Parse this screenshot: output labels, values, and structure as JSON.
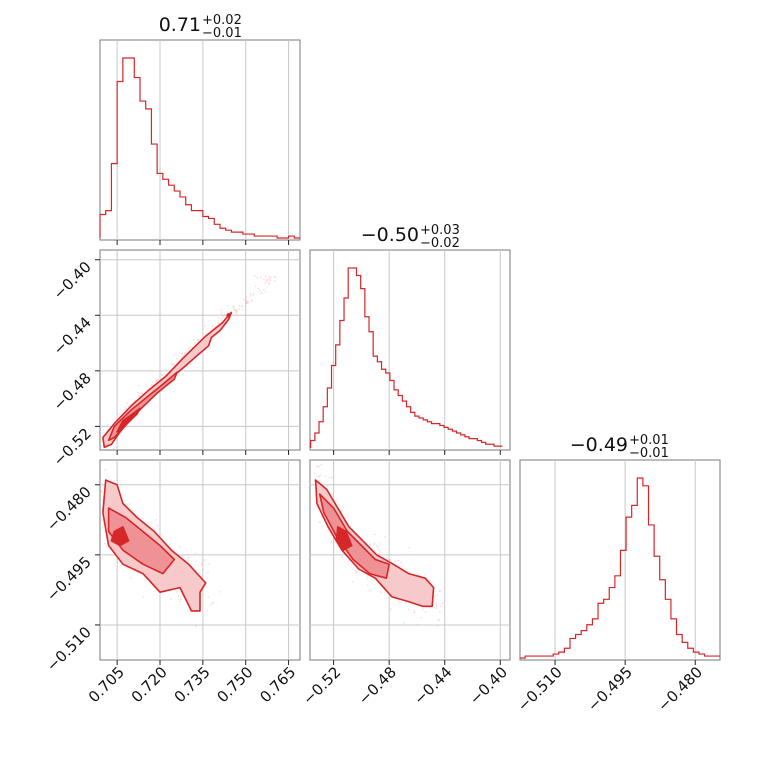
{
  "colors": {
    "accent": "#d62728",
    "fill_light": "#f6c9cb",
    "fill_mid": "#ee9296",
    "fill_dark": "#d62728",
    "grid": "#c8c8c8"
  },
  "chart_data": [
    {
      "type": "histogram",
      "parameter": 0,
      "title": {
        "value": "0.71",
        "upper": "+0.02",
        "lower": "−0.01"
      },
      "x": [
        0.7,
        0.702,
        0.704,
        0.706,
        0.708,
        0.71,
        0.712,
        0.714,
        0.716,
        0.718,
        0.72,
        0.722,
        0.724,
        0.726,
        0.728,
        0.73,
        0.732,
        0.734,
        0.736,
        0.738,
        0.74,
        0.742,
        0.744,
        0.746,
        0.748,
        0.75,
        0.752,
        0.754,
        0.756,
        0.758,
        0.76,
        0.762,
        0.764,
        0.766,
        0.768
      ],
      "values": [
        12,
        14,
        38,
        80,
        92,
        92,
        82,
        70,
        66,
        48,
        33,
        30,
        27,
        24,
        21,
        17,
        14,
        14,
        11,
        10,
        7,
        5,
        4,
        3,
        3,
        2,
        2,
        1,
        1,
        1,
        1,
        0,
        0,
        1,
        0
      ],
      "xlim": [
        0.699,
        0.769
      ],
      "xticks": [
        "0.705",
        "0.720",
        "0.735",
        "0.750",
        "0.765"
      ],
      "xtick_values": [
        0.705,
        0.72,
        0.735,
        0.75,
        0.765
      ]
    },
    {
      "type": "histogram",
      "parameter": 1,
      "title": {
        "value": "−0.50",
        "upper": "+0.03",
        "lower": "−0.02"
      },
      "x": [
        -0.535,
        -0.532,
        -0.529,
        -0.526,
        -0.523,
        -0.52,
        -0.517,
        -0.514,
        -0.511,
        -0.508,
        -0.505,
        -0.502,
        -0.499,
        -0.496,
        -0.493,
        -0.49,
        -0.487,
        -0.484,
        -0.481,
        -0.478,
        -0.475,
        -0.472,
        -0.469,
        -0.466,
        -0.463,
        -0.46,
        -0.457,
        -0.454,
        -0.451,
        -0.448,
        -0.445,
        -0.442,
        -0.439,
        -0.436,
        -0.433,
        -0.43,
        -0.427,
        -0.424,
        -0.421,
        -0.418,
        -0.415,
        -0.412,
        -0.409,
        -0.406,
        -0.403,
        -0.4
      ],
      "values": [
        4,
        8,
        14,
        22,
        32,
        44,
        55,
        68,
        80,
        96,
        96,
        92,
        85,
        70,
        62,
        49,
        46,
        42,
        40,
        36,
        31,
        28,
        25,
        22,
        19,
        17,
        16,
        15,
        14,
        13,
        13,
        12,
        11,
        10,
        9,
        8,
        7,
        6,
        5,
        5,
        4,
        3,
        2,
        2,
        1,
        1
      ],
      "xlim": [
        -0.537,
        -0.393
      ],
      "xticks": [
        "−0.52",
        "−0.48",
        "−0.44",
        "−0.40"
      ],
      "xtick_values": [
        -0.52,
        -0.48,
        -0.44,
        -0.4
      ]
    },
    {
      "type": "histogram",
      "parameter": 2,
      "title": {
        "value": "−0.49",
        "upper": "+0.01",
        "lower": "−0.01"
      },
      "x": [
        -0.517,
        -0.5158,
        -0.5146,
        -0.5134,
        -0.5122,
        -0.511,
        -0.5098,
        -0.5086,
        -0.5074,
        -0.5062,
        -0.505,
        -0.5038,
        -0.5026,
        -0.5014,
        -0.5002,
        -0.499,
        -0.4978,
        -0.4966,
        -0.4954,
        -0.4942,
        -0.493,
        -0.4918,
        -0.4906,
        -0.4894,
        -0.4882,
        -0.487,
        -0.4858,
        -0.4846,
        -0.4834,
        -0.4822,
        -0.481,
        -0.4798,
        -0.4786,
        -0.4774,
        -0.4762,
        -0.475
      ],
      "values": [
        0,
        1,
        1,
        1,
        1,
        1,
        2,
        3,
        5,
        10,
        12,
        14,
        17,
        20,
        28,
        30,
        36,
        42,
        55,
        72,
        78,
        92,
        88,
        68,
        52,
        40,
        30,
        20,
        12,
        8,
        5,
        3,
        2,
        1,
        1,
        1
      ],
      "xlim": [
        -0.5175,
        -0.4747
      ],
      "xticks": [
        "−0.510",
        "−0.495",
        "−0.480"
      ],
      "xtick_values": [
        -0.51,
        -0.495,
        -0.48
      ]
    },
    {
      "type": "scatter",
      "x_param": 0,
      "y_param": 1,
      "xlim": [
        0.699,
        0.769
      ],
      "ylim": [
        -0.537,
        -0.393
      ],
      "yticks": [
        "−0.40",
        "−0.44",
        "−0.48",
        "−0.52"
      ],
      "ytick_values": [
        -0.4,
        -0.44,
        -0.48,
        -0.52
      ],
      "ridge": [
        [
          0.7,
          -0.532
        ],
        [
          0.705,
          -0.52
        ],
        [
          0.71,
          -0.508
        ],
        [
          0.715,
          -0.496
        ],
        [
          0.72,
          -0.486
        ],
        [
          0.725,
          -0.477
        ],
        [
          0.73,
          -0.466
        ],
        [
          0.735,
          -0.455
        ],
        [
          0.74,
          -0.446
        ],
        [
          0.745,
          -0.437
        ],
        [
          0.75,
          -0.43
        ],
        [
          0.755,
          -0.42
        ],
        [
          0.76,
          -0.412
        ]
      ],
      "contours": [
        {
          "level": "outer",
          "points": [
            [
              0.7005,
              -0.535
            ],
            [
              0.7,
              -0.528
            ],
            [
              0.704,
              -0.518
            ],
            [
              0.71,
              -0.505
            ],
            [
              0.716,
              -0.494
            ],
            [
              0.722,
              -0.484
            ],
            [
              0.728,
              -0.471
            ],
            [
              0.733,
              -0.461
            ],
            [
              0.736,
              -0.455
            ],
            [
              0.742,
              -0.445
            ],
            [
              0.744,
              -0.44
            ],
            [
              0.745,
              -0.438
            ],
            [
              0.744,
              -0.443
            ],
            [
              0.741,
              -0.451
            ],
            [
              0.738,
              -0.456
            ],
            [
              0.737,
              -0.462
            ],
            [
              0.733,
              -0.469
            ],
            [
              0.728,
              -0.478
            ],
            [
              0.722,
              -0.488
            ],
            [
              0.716,
              -0.5
            ],
            [
              0.711,
              -0.512
            ],
            [
              0.706,
              -0.524
            ],
            [
              0.703,
              -0.533
            ]
          ]
        },
        {
          "level": "mid",
          "points": [
            [
              0.702,
              -0.53
            ],
            [
              0.704,
              -0.52
            ],
            [
              0.71,
              -0.508
            ],
            [
              0.716,
              -0.498
            ],
            [
              0.722,
              -0.488
            ],
            [
              0.726,
              -0.481
            ],
            [
              0.725,
              -0.486
            ],
            [
              0.719,
              -0.496
            ],
            [
              0.713,
              -0.508
            ],
            [
              0.708,
              -0.519
            ],
            [
              0.704,
              -0.528
            ]
          ]
        },
        {
          "level": "inner",
          "points": [
            [
              0.705,
              -0.524
            ],
            [
              0.707,
              -0.516
            ],
            [
              0.711,
              -0.51
            ],
            [
              0.713,
              -0.507
            ],
            [
              0.712,
              -0.511
            ],
            [
              0.709,
              -0.517
            ],
            [
              0.706,
              -0.523
            ]
          ]
        }
      ],
      "levels_marker": [
        [
          0.744,
          -0.44
        ]
      ]
    },
    {
      "type": "scatter",
      "x_param": 0,
      "y_param": 2,
      "xlim": [
        0.699,
        0.769
      ],
      "ylim": [
        -0.5175,
        -0.4747
      ],
      "yticks": [
        "−0.480",
        "−0.495",
        "−0.510"
      ],
      "ytick_values": [
        -0.48,
        -0.495,
        -0.51
      ],
      "ridge": [
        [
          0.7,
          -0.484
        ],
        [
          0.705,
          -0.488
        ],
        [
          0.71,
          -0.492
        ],
        [
          0.715,
          -0.495
        ],
        [
          0.72,
          -0.497
        ],
        [
          0.725,
          -0.499
        ],
        [
          0.73,
          -0.501
        ],
        [
          0.735,
          -0.503
        ],
        [
          0.74,
          -0.505
        ]
      ],
      "contours": [
        {
          "level": "outer",
          "points": [
            [
              0.701,
              -0.479
            ],
            [
              0.705,
              -0.48
            ],
            [
              0.707,
              -0.484
            ],
            [
              0.712,
              -0.487
            ],
            [
              0.718,
              -0.49
            ],
            [
              0.724,
              -0.494
            ],
            [
              0.73,
              -0.497
            ],
            [
              0.733,
              -0.499
            ],
            [
              0.736,
              -0.501
            ],
            [
              0.734,
              -0.503
            ],
            [
              0.734,
              -0.507
            ],
            [
              0.731,
              -0.507
            ],
            [
              0.727,
              -0.502
            ],
            [
              0.72,
              -0.503
            ],
            [
              0.714,
              -0.499
            ],
            [
              0.707,
              -0.497
            ],
            [
              0.702,
              -0.493
            ],
            [
              0.7,
              -0.486
            ]
          ]
        },
        {
          "level": "mid",
          "points": [
            [
              0.702,
              -0.485
            ],
            [
              0.708,
              -0.487
            ],
            [
              0.714,
              -0.49
            ],
            [
              0.72,
              -0.493
            ],
            [
              0.725,
              -0.496
            ],
            [
              0.721,
              -0.499
            ],
            [
              0.714,
              -0.497
            ],
            [
              0.707,
              -0.494
            ],
            [
              0.702,
              -0.49
            ]
          ]
        },
        {
          "level": "inner",
          "points": [
            [
              0.704,
              -0.49
            ],
            [
              0.707,
              -0.489
            ],
            [
              0.709,
              -0.492
            ],
            [
              0.706,
              -0.493
            ],
            [
              0.703,
              -0.492
            ]
          ]
        }
      ]
    },
    {
      "type": "scatter",
      "x_param": 1,
      "y_param": 2,
      "xlim": [
        -0.537,
        -0.393
      ],
      "ylim": [
        -0.5175,
        -0.4747
      ],
      "ridge": [
        [
          -0.532,
          -0.48
        ],
        [
          -0.522,
          -0.486
        ],
        [
          -0.512,
          -0.491
        ],
        [
          -0.502,
          -0.494
        ],
        [
          -0.492,
          -0.497
        ],
        [
          -0.482,
          -0.499
        ],
        [
          -0.472,
          -0.502
        ],
        [
          -0.462,
          -0.503
        ],
        [
          -0.452,
          -0.505
        ],
        [
          -0.442,
          -0.507
        ]
      ],
      "contours": [
        {
          "level": "outer",
          "points": [
            [
              -0.533,
              -0.479
            ],
            [
              -0.525,
              -0.481
            ],
            [
              -0.517,
              -0.485
            ],
            [
              -0.509,
              -0.489
            ],
            [
              -0.499,
              -0.492
            ],
            [
              -0.489,
              -0.495
            ],
            [
              -0.477,
              -0.497
            ],
            [
              -0.466,
              -0.499
            ],
            [
              -0.454,
              -0.5
            ],
            [
              -0.448,
              -0.502
            ],
            [
              -0.449,
              -0.506
            ],
            [
              -0.456,
              -0.506
            ],
            [
              -0.466,
              -0.505
            ],
            [
              -0.478,
              -0.504
            ],
            [
              -0.49,
              -0.5
            ],
            [
              -0.502,
              -0.498
            ],
            [
              -0.514,
              -0.494
            ],
            [
              -0.524,
              -0.489
            ],
            [
              -0.532,
              -0.484
            ]
          ]
        },
        {
          "level": "mid",
          "points": [
            [
              -0.53,
              -0.482
            ],
            [
              -0.52,
              -0.485
            ],
            [
              -0.51,
              -0.49
            ],
            [
              -0.5,
              -0.493
            ],
            [
              -0.49,
              -0.496
            ],
            [
              -0.48,
              -0.497
            ],
            [
              -0.482,
              -0.5
            ],
            [
              -0.494,
              -0.499
            ],
            [
              -0.506,
              -0.496
            ],
            [
              -0.518,
              -0.491
            ],
            [
              -0.527,
              -0.486
            ]
          ]
        },
        {
          "level": "inner",
          "points": [
            [
              -0.517,
              -0.489
            ],
            [
              -0.511,
              -0.49
            ],
            [
              -0.507,
              -0.493
            ],
            [
              -0.513,
              -0.494
            ],
            [
              -0.518,
              -0.492
            ]
          ]
        }
      ]
    }
  ]
}
